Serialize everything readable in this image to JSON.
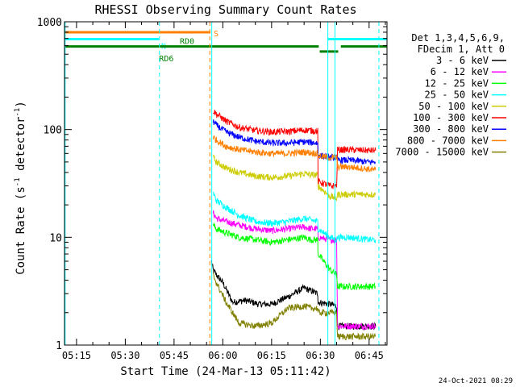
{
  "chart_data": {
    "type": "line",
    "title": "RHESSI Observing Summary Count Rates",
    "xlabel": "Start Time (24-Mar-13 05:11:42)",
    "ylabel_pre": "Count Rate (s",
    "ylabel_sup": "-1",
    "ylabel_post": " detector",
    "ylabel_sup2": "-1",
    "ylabel_end": ")",
    "y_scale": "log",
    "ylim": [
      1,
      1000
    ],
    "xlim_minutes": [
      -3.7,
      95.5
    ],
    "x_ticks": [
      "05:15",
      "05:30",
      "05:45",
      "06:00",
      "06:15",
      "06:30",
      "06:45"
    ],
    "x_tick_minutes": [
      0,
      15,
      30,
      45,
      60,
      75,
      90
    ],
    "y_ticks": [
      "1",
      "10",
      "100",
      "1000"
    ],
    "y_tick_values": [
      1,
      10,
      100,
      1000
    ],
    "legend": {
      "header_line1": "Det 1,3,4,5,6,9,",
      "header_line2": "FDecim 1, Att 0",
      "position": "right"
    },
    "series": [
      {
        "name": "3 - 6 keV",
        "color": "#000000",
        "x": [
          41.5,
          42,
          43,
          45,
          48,
          52,
          56,
          60,
          65,
          70,
          72,
          74.2,
          74.3,
          78,
          80,
          80.3,
          84,
          90,
          92
        ],
        "y": [
          6,
          5,
          4.5,
          3.8,
          2.5,
          2.6,
          2.4,
          2.4,
          2.8,
          3.4,
          3.2,
          3.0,
          2.5,
          2.4,
          2.3,
          1.5,
          1.5,
          1.5,
          1.5
        ]
      },
      {
        "name": "6 - 12 keV",
        "color": "#ff00ff",
        "x": [
          42,
          43,
          46,
          50,
          55,
          60,
          65,
          70,
          72,
          74.2,
          74.3,
          78,
          80,
          80.3,
          84,
          90,
          92
        ],
        "y": [
          17,
          15,
          14,
          13,
          12,
          11.5,
          12,
          12.5,
          12,
          12,
          10,
          9.5,
          9.5,
          1.5,
          1.5,
          1.5,
          1.5
        ]
      },
      {
        "name": "12 - 25 keV",
        "color": "#00ff00",
        "x": [
          42,
          43,
          46,
          50,
          55,
          60,
          65,
          70,
          72,
          74.2,
          74.3,
          78,
          80,
          80.3,
          84,
          90,
          92
        ],
        "y": [
          13,
          12,
          11,
          10,
          9.5,
          9,
          9.5,
          10,
          9.5,
          9.5,
          7,
          5,
          4.5,
          3.5,
          3.5,
          3.5,
          3.5
        ]
      },
      {
        "name": "25 - 50 keV",
        "color": "#00ffff",
        "x": [
          42,
          43,
          46,
          50,
          55,
          60,
          65,
          70,
          72,
          74.2,
          74.3,
          78,
          80,
          80.3,
          84,
          90,
          92
        ],
        "y": [
          26,
          22,
          19,
          16,
          14,
          13.5,
          14,
          15,
          14.5,
          14,
          12,
          10,
          9.5,
          10,
          10,
          9.5,
          9.5
        ]
      },
      {
        "name": "50 - 100 keV",
        "color": "#cccc00",
        "x": [
          42,
          43,
          46,
          50,
          55,
          60,
          65,
          70,
          72,
          74.2,
          74.3,
          78,
          80,
          80.3,
          84,
          90,
          92
        ],
        "y": [
          55,
          50,
          44,
          40,
          37,
          36,
          37,
          39,
          38,
          38,
          30,
          24,
          23,
          25,
          25,
          25,
          25
        ]
      },
      {
        "name": "100 - 300 keV",
        "color": "#ff0000",
        "x": [
          42,
          43,
          46,
          50,
          55,
          60,
          65,
          70,
          72,
          74.2,
          74.3,
          78,
          80,
          80.3,
          84,
          90,
          92
        ],
        "y": [
          150,
          140,
          120,
          105,
          98,
          95,
          96,
          99,
          98,
          97,
          33,
          30,
          30,
          65,
          65,
          64,
          64
        ]
      },
      {
        "name": "300 - 800 keV",
        "color": "#0000ff",
        "x": [
          42,
          43,
          46,
          50,
          55,
          60,
          65,
          70,
          72,
          74.2,
          74.3,
          78,
          80,
          80.3,
          84,
          90,
          92
        ],
        "y": [
          120,
          110,
          95,
          85,
          78,
          75,
          75,
          77,
          76,
          75,
          58,
          55,
          55,
          52,
          52,
          50,
          50
        ]
      },
      {
        "name": "800 - 7000 keV",
        "color": "#ff8000",
        "x": [
          42,
          43,
          46,
          50,
          55,
          60,
          65,
          70,
          72,
          74.2,
          74.3,
          78,
          80,
          80.3,
          84,
          90,
          92
        ],
        "y": [
          85,
          80,
          70,
          65,
          62,
          60,
          60,
          62,
          61,
          60,
          57,
          55,
          55,
          45,
          45,
          43,
          42
        ]
      },
      {
        "name": "7000 - 15000 keV",
        "color": "#808000",
        "x": [
          42,
          43,
          46,
          50,
          55,
          60,
          65,
          70,
          72,
          74.2,
          74.3,
          78,
          80,
          80.3,
          84,
          90,
          92
        ],
        "y": [
          4.5,
          3.8,
          2.5,
          1.6,
          1.5,
          1.6,
          2.2,
          2.3,
          2.2,
          2.2,
          2.0,
          2.0,
          2.0,
          1.2,
          1.2,
          1.2,
          1.2
        ]
      }
    ],
    "flags": [
      {
        "label": "S",
        "color": "#ff8000",
        "x_start": -3.7,
        "x_end": 41.2,
        "y": 800
      },
      {
        "label": "N",
        "color": "#00ffff",
        "x_start": -3.7,
        "x_end": 25.3,
        "y": 690
      },
      {
        "label": "",
        "color": "#00ffff",
        "x_start": 77.2,
        "x_end": 95.5,
        "y": 690
      },
      {
        "label": "RD0",
        "color": "#008000",
        "x_start": -3.7,
        "x_end": 74.5,
        "y": 590
      },
      {
        "label": "RD6",
        "color": "#008000",
        "x_start": 74.8,
        "x_end": 80.5,
        "y": 530
      },
      {
        "label": "",
        "color": "#008000",
        "x_start": 81.3,
        "x_end": 95.5,
        "y": 590
      }
    ],
    "vlines": [
      {
        "x": -3.5,
        "color": "#00ffff",
        "style": "solid"
      },
      {
        "x": 25.5,
        "color": "#00ffff",
        "style": "dashed"
      },
      {
        "x": 41.0,
        "color": "#ff8000",
        "style": "dashed"
      },
      {
        "x": 41.6,
        "color": "#00ffff",
        "style": "solid"
      },
      {
        "x": 77.3,
        "color": "#00ffff",
        "style": "solid"
      },
      {
        "x": 79.5,
        "color": "#00ffff",
        "style": "solid"
      },
      {
        "x": 93.0,
        "color": "#00ffff",
        "style": "dashed"
      }
    ]
  },
  "footer": {
    "timestamp": "24-Oct-2021 08:29"
  }
}
